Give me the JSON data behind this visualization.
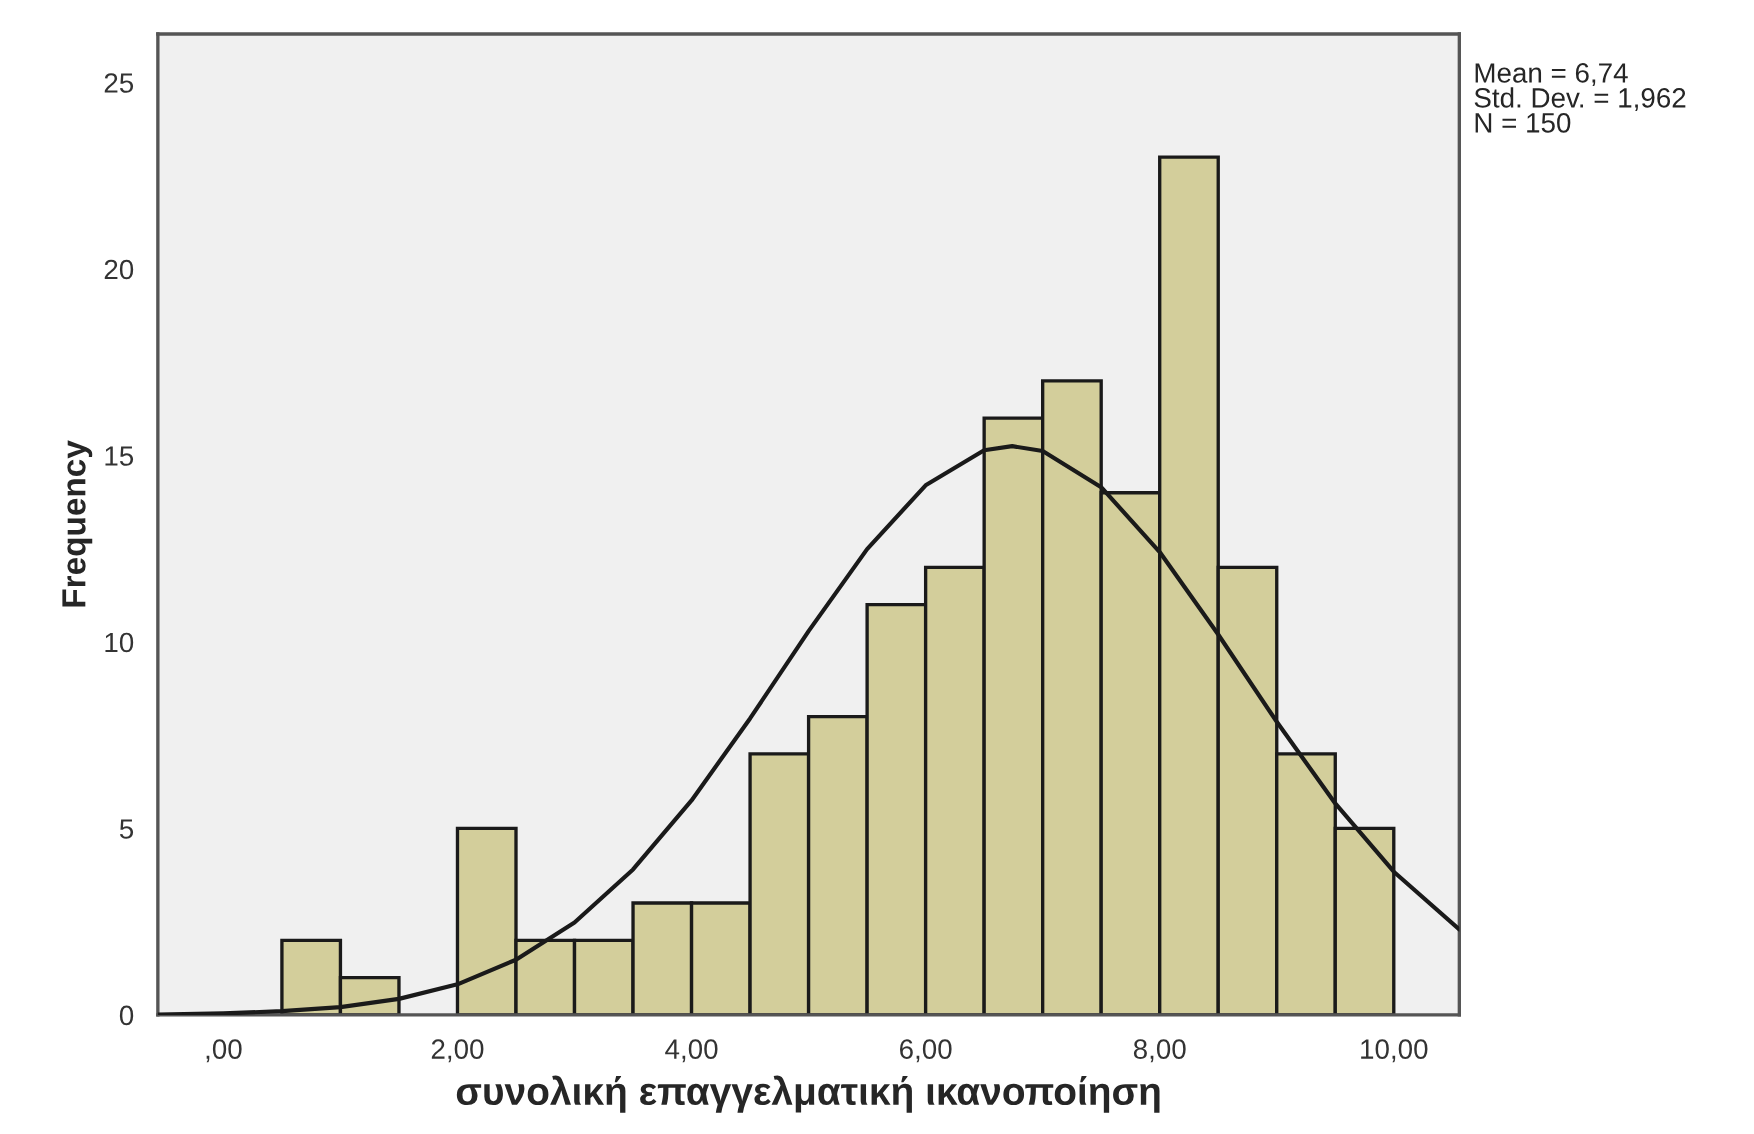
{
  "chart_data": {
    "type": "histogram",
    "xlabel": "συνολική επαγγελματική ικανοποίηση",
    "ylabel": "Frequency",
    "bins": [
      0.5,
      1.0,
      1.5,
      2.0,
      2.5,
      3.0,
      3.5,
      4.0,
      4.5,
      5.0,
      5.5,
      6.0,
      6.5,
      7.0,
      7.5,
      8.0,
      8.5,
      9.0,
      9.5,
      10.0
    ],
    "values": [
      2,
      1,
      0,
      5,
      2,
      2,
      3,
      3,
      7,
      8,
      11,
      12,
      16,
      17,
      14,
      23,
      12,
      7,
      5
    ],
    "color": "#d3ce9b",
    "series": [
      {
        "type": "line",
        "color": "#1a1a1a",
        "x": [
          -0.56,
          0,
          0.5,
          1,
          1.5,
          2,
          2.5,
          3,
          3.5,
          4,
          4.5,
          5,
          5.5,
          6,
          6.5,
          6.74,
          7,
          7.5,
          8,
          8.5,
          9,
          9.5,
          10,
          10.56
        ],
        "values": [
          0.01,
          0.04,
          0.1,
          0.21,
          0.43,
          0.82,
          1.48,
          2.48,
          3.9,
          5.75,
          7.95,
          10.29,
          12.49,
          14.2,
          15.14,
          15.25,
          15.12,
          14.15,
          12.41,
          10.2,
          7.86,
          5.67,
          3.84,
          2.29
        ]
      }
    ],
    "xlim": [
      -0.56,
      10.56
    ],
    "xticks": [
      {
        "value": 0,
        "label": ",00"
      },
      {
        "value": 2,
        "label": "2,00"
      },
      {
        "value": 4,
        "label": "4,00"
      },
      {
        "value": 6,
        "label": "6,00"
      },
      {
        "value": 8,
        "label": "8,00"
      },
      {
        "value": 10,
        "label": "10,00"
      }
    ],
    "ylim": [
      0,
      26.3
    ],
    "yticks": [
      0,
      5,
      10,
      15,
      20,
      25
    ],
    "annotations": [
      "Mean = 6,74",
      "Std. Dev. = 1,962",
      "N = 150"
    ]
  }
}
